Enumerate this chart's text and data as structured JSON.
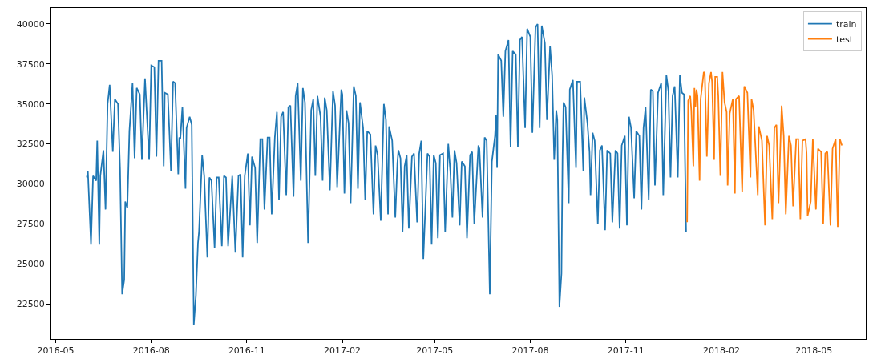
{
  "chart_data": {
    "type": "line",
    "xlim": [
      "2016-04-26",
      "2018-06-20"
    ],
    "xticks": [
      "2016-05",
      "2016-08",
      "2016-11",
      "2017-02",
      "2017-05",
      "2017-08",
      "2017-11",
      "2018-02",
      "2018-05"
    ],
    "ylim": [
      20300,
      41000
    ],
    "yticks": [
      22500,
      25000,
      27500,
      30000,
      32500,
      35000,
      37500,
      40000
    ],
    "legend": "top right",
    "marker": "none",
    "line_style": "solid",
    "series": [
      {
        "name": "train",
        "color": "#1f77b4",
        "x": [
          "2016-05-31",
          "2016-06-01",
          "2016-06-04",
          "2016-06-06",
          "2016-06-09",
          "2016-06-10",
          "2016-06-12",
          "2016-06-13",
          "2016-06-16",
          "2016-06-18",
          "2016-06-20",
          "2016-06-22",
          "2016-06-25",
          "2016-06-27",
          "2016-06-30",
          "2016-07-02",
          "2016-07-04",
          "2016-07-06",
          "2016-07-07",
          "2016-07-09",
          "2016-07-11",
          "2016-07-14",
          "2016-07-16",
          "2016-07-18",
          "2016-07-21",
          "2016-07-23",
          "2016-07-26",
          "2016-07-30",
          "2016-08-01",
          "2016-08-04",
          "2016-08-06",
          "2016-08-08",
          "2016-08-11",
          "2016-08-13",
          "2016-08-14",
          "2016-08-17",
          "2016-08-20",
          "2016-08-22",
          "2016-08-24",
          "2016-08-27",
          "2016-08-28",
          "2016-08-29",
          "2016-08-31",
          "2016-09-03",
          "2016-09-04",
          "2016-09-07",
          "2016-09-09",
          "2016-09-11",
          "2016-09-13",
          "2016-09-15",
          "2016-09-16",
          "2016-09-19",
          "2016-09-21",
          "2016-09-24",
          "2016-09-26",
          "2016-09-28",
          "2016-10-01",
          "2016-10-03",
          "2016-10-05",
          "2016-10-08",
          "2016-10-10",
          "2016-10-12",
          "2016-10-14",
          "2016-10-18",
          "2016-10-21",
          "2016-10-24",
          "2016-10-26",
          "2016-10-28",
          "2016-10-30",
          "2016-11-02",
          "2016-11-04",
          "2016-11-06",
          "2016-11-09",
          "2016-11-11",
          "2016-11-14",
          "2016-11-16",
          "2016-11-18",
          "2016-11-21",
          "2016-11-23",
          "2016-11-25",
          "2016-11-28",
          "2016-11-30",
          "2016-12-02",
          "2016-12-04",
          "2016-12-06",
          "2016-12-09",
          "2016-12-11",
          "2016-12-13",
          "2016-12-16",
          "2016-12-18",
          "2016-12-20",
          "2016-12-23",
          "2016-12-25",
          "2016-12-27",
          "2016-12-30",
          "2017-01-02",
          "2017-01-04",
          "2017-01-06",
          "2017-01-08",
          "2017-01-11",
          "2017-01-13",
          "2017-01-15",
          "2017-01-17",
          "2017-01-20",
          "2017-01-23",
          "2017-01-25",
          "2017-01-27",
          "2017-01-31",
          "2017-02-01",
          "2017-02-03",
          "2017-02-05",
          "2017-02-07",
          "2017-02-09",
          "2017-02-12",
          "2017-02-14",
          "2017-02-16",
          "2017-02-18",
          "2017-02-21",
          "2017-02-23",
          "2017-02-25",
          "2017-02-28",
          "2017-03-03",
          "2017-03-05",
          "2017-03-07",
          "2017-03-10",
          "2017-03-13",
          "2017-03-15",
          "2017-03-17",
          "2017-03-18",
          "2017-03-21",
          "2017-03-24",
          "2017-03-26",
          "2017-03-27",
          "2017-03-29",
          "2017-03-31",
          "2017-04-02",
          "2017-04-04",
          "2017-04-06",
          "2017-04-09",
          "2017-04-11",
          "2017-04-14",
          "2017-04-16",
          "2017-04-18",
          "2017-04-20",
          "2017-04-24",
          "2017-04-26",
          "2017-04-28",
          "2017-04-30",
          "2017-05-02",
          "2017-05-04",
          "2017-05-06",
          "2017-05-09",
          "2017-05-11",
          "2017-05-14",
          "2017-05-16",
          "2017-05-18",
          "2017-05-20",
          "2017-05-22",
          "2017-05-25",
          "2017-05-27",
          "2017-05-30",
          "2017-06-01",
          "2017-06-04",
          "2017-06-06",
          "2017-06-08",
          "2017-06-12",
          "2017-06-13",
          "2017-06-16",
          "2017-06-18",
          "2017-06-20",
          "2017-06-23",
          "2017-06-25",
          "2017-06-28",
          "2017-06-29",
          "2017-06-30",
          "2017-07-01",
          "2017-07-04",
          "2017-07-06",
          "2017-07-08",
          "2017-07-11",
          "2017-07-13",
          "2017-07-15",
          "2017-07-18",
          "2017-07-20",
          "2017-07-22",
          "2017-07-24",
          "2017-07-27",
          "2017-07-29",
          "2017-08-01",
          "2017-08-03",
          "2017-08-06",
          "2017-08-08",
          "2017-08-10",
          "2017-08-12",
          "2017-08-15",
          "2017-08-17",
          "2017-08-20",
          "2017-08-22",
          "2017-08-24",
          "2017-08-26",
          "2017-08-27",
          "2017-08-29",
          "2017-08-31",
          "2017-09-01",
          "2017-09-02",
          "2017-09-04",
          "2017-09-07",
          "2017-09-08",
          "2017-09-11",
          "2017-09-14",
          "2017-09-15",
          "2017-09-18",
          "2017-09-21",
          "2017-09-22",
          "2017-09-25",
          "2017-09-27",
          "2017-09-28",
          "2017-09-30",
          "2017-10-02",
          "2017-10-05",
          "2017-10-07",
          "2017-10-09",
          "2017-10-12",
          "2017-10-14",
          "2017-10-17",
          "2017-10-19",
          "2017-10-22",
          "2017-10-24",
          "2017-10-26",
          "2017-10-28",
          "2017-10-31",
          "2017-11-02",
          "2017-11-04",
          "2017-11-06",
          "2017-11-09",
          "2017-11-11",
          "2017-11-14",
          "2017-11-16",
          "2017-11-18",
          "2017-11-20",
          "2017-11-23",
          "2017-11-25",
          "2017-11-27",
          "2017-11-29",
          "2017-12-02",
          "2017-12-05",
          "2017-12-07",
          "2017-12-10",
          "2017-12-12",
          "2017-12-14",
          "2017-12-16",
          "2017-12-18",
          "2017-12-21",
          "2017-12-23",
          "2017-12-25",
          "2017-12-27",
          "2017-12-29"
        ],
        "values": [
          30400,
          30800,
          26200,
          30500,
          30200,
          32700,
          26200,
          30500,
          32100,
          28400,
          35000,
          36200,
          32000,
          35300,
          35000,
          30900,
          23100,
          24000,
          28900,
          28500,
          33300,
          36300,
          31600,
          36000,
          35600,
          31500,
          36600,
          31500,
          37400,
          37300,
          31700,
          37700,
          37700,
          31100,
          35700,
          35600,
          30800,
          36400,
          36300,
          30600,
          32900,
          32800,
          34800,
          29700,
          33500,
          34200,
          33700,
          21200,
          23000,
          26300,
          27000,
          31800,
          30500,
          25400,
          30400,
          30200,
          26000,
          30400,
          30400,
          26100,
          30500,
          30400,
          26100,
          30500,
          25700,
          30500,
          30600,
          25400,
          30500,
          31900,
          27400,
          31700,
          31000,
          26300,
          32800,
          32800,
          28400,
          32900,
          32900,
          28100,
          32900,
          34500,
          29000,
          34200,
          34500,
          29300,
          34800,
          34900,
          29200,
          35500,
          36300,
          30200,
          36000,
          35100,
          26300,
          34600,
          35300,
          30500,
          35500,
          34200,
          30200,
          35400,
          34600,
          29600,
          35800,
          34900,
          29800,
          35900,
          35600,
          29400,
          34600,
          33800,
          28800,
          36100,
          35500,
          29700,
          35100,
          33500,
          29000,
          33300,
          33100,
          28100,
          32400,
          31800,
          27700,
          35000,
          34000,
          28100,
          33600,
          32700,
          27900,
          31300,
          32100,
          31600,
          27000,
          31100,
          31800,
          27200,
          31700,
          31900,
          27600,
          31900,
          32700,
          25300,
          31900,
          31700,
          26200,
          31800,
          31300,
          26600,
          31800,
          31900,
          27000,
          32500,
          30800,
          27900,
          32100,
          31300,
          27400,
          31400,
          31100,
          26600,
          31800,
          32000,
          27500,
          32400,
          32200,
          27900,
          32900,
          32700,
          23100,
          31400,
          33000,
          34300,
          31000,
          38100,
          37700,
          34200,
          38300,
          39000,
          32300,
          38300,
          38100,
          32300,
          39000,
          39200,
          33500,
          39700,
          39200,
          33200,
          39800,
          40000,
          33500,
          39900,
          38800,
          34000,
          38600,
          36800,
          31500,
          34600,
          34000,
          22300,
          24400,
          31500,
          35100,
          34800,
          28800,
          35900,
          36500,
          31000,
          36400,
          36400,
          30800,
          35400,
          33800,
          32000,
          29300,
          33200,
          32700,
          27500,
          32100,
          32400,
          27100,
          32100,
          31900,
          27600,
          32100,
          31900,
          27200,
          32400,
          33000,
          27400,
          34200,
          33500,
          29100,
          33300,
          33000,
          28400,
          33500,
          34800,
          29000,
          35900,
          35800,
          29900,
          35700,
          36300,
          29300,
          36800,
          35800,
          30400,
          35500,
          36100,
          30400,
          36800,
          35700,
          35600,
          27000
        ]
      },
      {
        "name": "test",
        "color": "#ff7f0e",
        "x": [
          "2017-12-30",
          "2017-12-31",
          "2018-01-02",
          "2018-01-03",
          "2018-01-05",
          "2018-01-06",
          "2018-01-07",
          "2018-01-08",
          "2018-01-09",
          "2018-01-11",
          "2018-01-12",
          "2018-01-15",
          "2018-01-16",
          "2018-01-18",
          "2018-01-20",
          "2018-01-22",
          "2018-01-23",
          "2018-01-25",
          "2018-01-26",
          "2018-01-28",
          "2018-01-29",
          "2018-01-31",
          "2018-02-02",
          "2018-02-04",
          "2018-02-06",
          "2018-02-07",
          "2018-02-09",
          "2018-02-12",
          "2018-02-14",
          "2018-02-15",
          "2018-02-18",
          "2018-02-21",
          "2018-02-23",
          "2018-02-26",
          "2018-03-01",
          "2018-03-02",
          "2018-03-04",
          "2018-03-05",
          "2018-03-08",
          "2018-03-09",
          "2018-03-12",
          "2018-03-15",
          "2018-03-17",
          "2018-03-19",
          "2018-03-22",
          "2018-03-24",
          "2018-03-26",
          "2018-03-28",
          "2018-03-31",
          "2018-04-02",
          "2018-04-04",
          "2018-04-07",
          "2018-04-09",
          "2018-04-11",
          "2018-04-14",
          "2018-04-16",
          "2018-04-18",
          "2018-04-20",
          "2018-04-23",
          "2018-04-24",
          "2018-04-25",
          "2018-04-28",
          "2018-04-30",
          "2018-05-03",
          "2018-05-05",
          "2018-05-08",
          "2018-05-10",
          "2018-05-12",
          "2018-05-14",
          "2018-05-17",
          "2018-05-19",
          "2018-05-22",
          "2018-05-24",
          "2018-05-26",
          "2018-05-28"
        ],
        "values": [
          27600,
          35200,
          35500,
          34600,
          31100,
          36000,
          34800,
          35900,
          35500,
          30200,
          35300,
          37000,
          36900,
          31700,
          36300,
          37000,
          36400,
          31500,
          36700,
          36700,
          35500,
          30500,
          37000,
          35100,
          34500,
          29900,
          34400,
          35300,
          29400,
          35300,
          35500,
          29500,
          36100,
          35700,
          30400,
          35300,
          34600,
          33300,
          29300,
          33600,
          32700,
          27400,
          33000,
          32400,
          27800,
          33500,
          33700,
          28800,
          34900,
          33000,
          28100,
          33000,
          32400,
          28600,
          32800,
          32800,
          27800,
          32700,
          32800,
          31900,
          28000,
          28900,
          32800,
          28400,
          32200,
          32000,
          27500,
          31900,
          32000,
          27400,
          32200,
          32800,
          27300,
          32800,
          32400
        ]
      }
    ]
  }
}
